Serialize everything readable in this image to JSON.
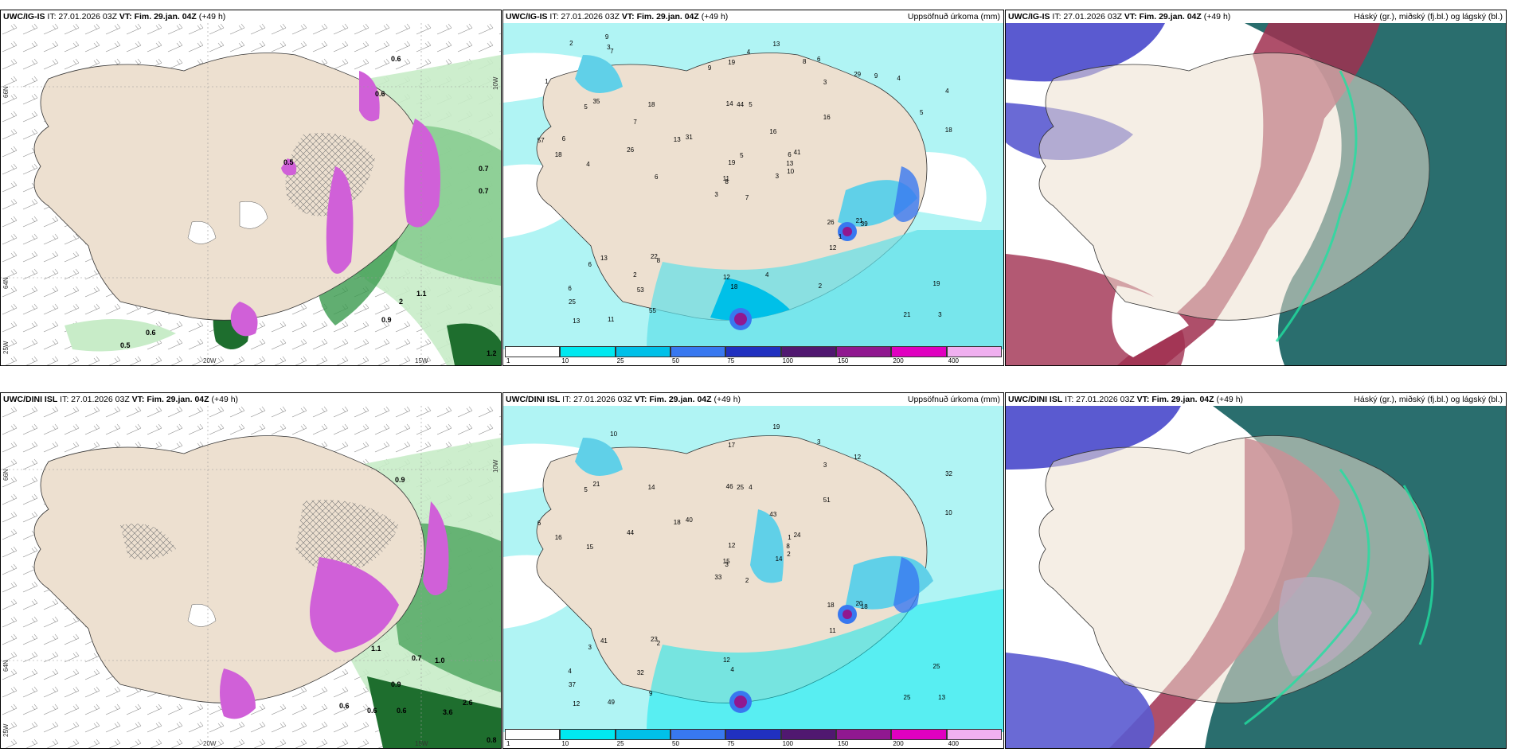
{
  "panels": [
    {
      "model": "UWC/IG-IS",
      "it": "IT: 27.01.2026 03Z",
      "vt_label": "VT:",
      "vt": "Fim. 29.jan. 04Z",
      "lead": "(+49 h)",
      "right": ""
    },
    {
      "model": "UWC/IG-IS",
      "it": "IT: 27.01.2026 03Z",
      "vt_label": "VT:",
      "vt": "Fim. 29.jan. 04Z",
      "lead": "(+49 h)",
      "right": "Uppsöfnuð úrkoma (mm)"
    },
    {
      "model": "UWC/IG-IS",
      "it": "IT: 27.01.2026 03Z",
      "vt_label": "VT:",
      "vt": "Fim. 29.jan. 04Z",
      "lead": "(+49 h)",
      "right": "Háský (gr.), miðský (fj.bl.) og lágský (bl.)"
    },
    {
      "model": "UWC/DINI ISL",
      "it": "IT: 27.01.2026 03Z",
      "vt_label": "VT:",
      "vt": "Fim. 29.jan. 04Z",
      "lead": "(+49 h)",
      "right": ""
    },
    {
      "model": "UWC/DINI ISL",
      "it": "IT: 27.01.2026 03Z",
      "vt_label": "VT:",
      "vt": "Fim. 29.jan. 04Z",
      "lead": "(+49 h)",
      "right": "Uppsöfnuð úrkoma (mm)"
    },
    {
      "model": "UWC/DINI ISL",
      "it": "IT: 27.01.2026 03Z",
      "vt_label": "VT:",
      "vt": "Fim. 29.jan. 04Z",
      "lead": "(+49 h)",
      "right": "Háský (gr.), miðský (fj.bl.) og lágský (bl.)"
    }
  ],
  "axes": {
    "lon_20": "20W",
    "lon_15": "15W",
    "lat_66": "66N",
    "lat_64": "64N",
    "lat_25w": "25W",
    "lat_10w": "10W"
  },
  "colorbar": {
    "ticks": [
      "1",
      "10",
      "25",
      "50",
      "75",
      "100",
      "150",
      "200",
      "400"
    ],
    "colors": [
      "#ffffff",
      "#00e8f0",
      "#00c0e8",
      "#3878f0",
      "#2030c0",
      "#501870",
      "#901890",
      "#e000c0",
      "#f0b0f0"
    ]
  },
  "precip_labels_top": [
    "7",
    "5",
    "8",
    "6",
    "6",
    "8",
    "6",
    "5",
    "3",
    "3",
    "7",
    "3",
    "4",
    "4",
    "3",
    "16",
    "11",
    "14",
    "16",
    "13",
    "31",
    "25",
    "53",
    "44",
    "41",
    "39",
    "35",
    "19",
    "18",
    "26",
    "18",
    "11",
    "12",
    "19",
    "18",
    "29",
    "22",
    "21",
    "19",
    "21",
    "13",
    "13",
    "26",
    "12",
    "55",
    "57",
    "13",
    "13",
    "18",
    "10",
    "6",
    "5",
    "1",
    "1",
    "2",
    "2",
    "3",
    "2",
    "4",
    "4",
    "4",
    "6",
    "6",
    "7",
    "9",
    "9",
    "8",
    "9",
    "5"
  ],
  "precip_labels_bottom": [
    "2",
    "5",
    "3",
    "4",
    "1",
    "2",
    "3",
    "4",
    "3",
    "14",
    "10",
    "13",
    "15",
    "32",
    "33",
    "51",
    "49",
    "46",
    "43",
    "41",
    "40",
    "37",
    "32",
    "25",
    "24",
    "18",
    "21",
    "17",
    "16",
    "18",
    "10",
    "15",
    "12",
    "12",
    "14",
    "12",
    "23",
    "25",
    "25",
    "20",
    "19",
    "18",
    "44",
    "11",
    "9",
    "6",
    "8",
    "12",
    "4",
    "2",
    "3"
  ],
  "wind_vals_top": [
    "0.6",
    "0.6",
    "0.5",
    "0.7",
    "0.7",
    "0.6",
    "0.5",
    "1.1",
    "0.9",
    "2",
    "1.2"
  ],
  "wind_vals_bottom": [
    "0.9",
    "0.7",
    "1.0",
    "0.9",
    "0.6",
    "0.6",
    "0.6",
    "2.6",
    "3.6",
    "0.8",
    "1.1"
  ],
  "colors": {
    "land": "#ede0d0",
    "sea": "#ffffff",
    "precip_sea": "#b0f4f4",
    "green_light": "#c8ecc8",
    "green_dark": "#1e6e2e",
    "magenta": "#d060d8",
    "cloud_blue": "#5a5ad0",
    "cloud_red": "#a03050",
    "cloud_teal": "#2a6e6e"
  }
}
